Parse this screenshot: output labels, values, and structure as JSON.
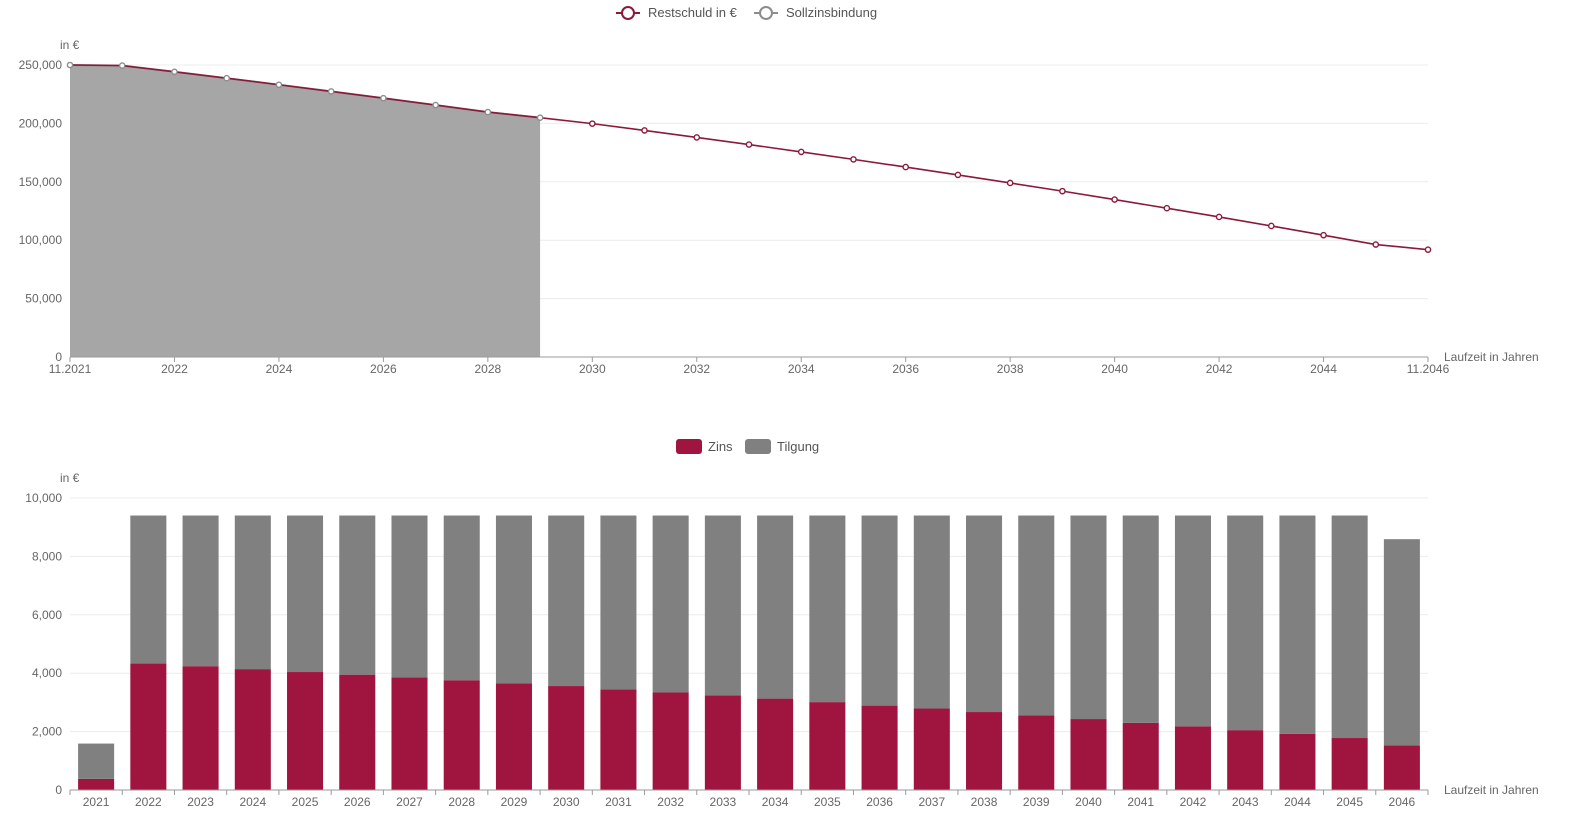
{
  "colors": {
    "restschuld": "#8b1a3a",
    "sollzinsbindung_line": "#8c8c8c",
    "sollzinsbindung_fill": "#a6a6a6",
    "zins": "#a01540",
    "tilgung": "#808080",
    "grid": "#ececec",
    "axis": "#9a9a9a"
  },
  "chart_data": [
    {
      "type": "line",
      "legend": [
        {
          "name": "Restschuld in €",
          "color": "#8b1a3a"
        },
        {
          "name": "Sollzinsbindung",
          "color": "#8c8c8c"
        }
      ],
      "ylabel": "in €",
      "xlabel": "Laufzeit in Jahren",
      "ylim": [
        0,
        250000
      ],
      "y_ticks": [
        "0",
        "50,000",
        "100,000",
        "150,000",
        "200,000",
        "250,000"
      ],
      "x_tick_labels": [
        "11.2021",
        "2022",
        "2024",
        "2026",
        "2028",
        "2030",
        "2032",
        "2034",
        "2036",
        "2038",
        "2040",
        "2042",
        "2044",
        "11.2046"
      ],
      "series": [
        {
          "name": "Restschuld in €",
          "x": [
            "11.2021",
            "2022",
            "2023",
            "2024",
            "2025",
            "2026",
            "2027",
            "2028",
            "2029",
            "2030",
            "2031",
            "2032",
            "2033",
            "2034",
            "2035",
            "2036",
            "2037",
            "2038",
            "2039",
            "2040",
            "2041",
            "2042",
            "2043",
            "2044",
            "2045",
            "2046",
            "11.2046"
          ],
          "values": [
            250000,
            249500,
            244200,
            238700,
            233100,
            227400,
            221600,
            215700,
            209700,
            204900,
            199800,
            194000,
            188000,
            181900,
            175600,
            169200,
            162600,
            155900,
            149000,
            142000,
            134800,
            127400,
            119900,
            112200,
            104300,
            96300,
            91900
          ]
        },
        {
          "name": "Sollzinsbindung",
          "x": [
            "11.2021",
            "2022",
            "2023",
            "2024",
            "2025",
            "2026",
            "2027",
            "2028",
            "2029",
            "2030"
          ],
          "values": [
            250000,
            249500,
            244200,
            238700,
            233100,
            227400,
            221600,
            215700,
            209700,
            204900
          ]
        }
      ]
    },
    {
      "type": "bar",
      "legend": [
        {
          "name": "Zins",
          "color": "#a01540"
        },
        {
          "name": "Tilgung",
          "color": "#808080"
        }
      ],
      "ylabel": "in €",
      "xlabel": "Laufzeit in Jahren",
      "ylim": [
        0,
        10000
      ],
      "y_ticks": [
        "0",
        "2,000",
        "4,000",
        "6,000",
        "8,000",
        "10,000"
      ],
      "categories": [
        "2021",
        "2022",
        "2023",
        "2024",
        "2025",
        "2026",
        "2027",
        "2028",
        "2029",
        "2030",
        "2031",
        "2032",
        "2033",
        "2034",
        "2035",
        "2036",
        "2037",
        "2038",
        "2039",
        "2040",
        "2041",
        "2042",
        "2043",
        "2044",
        "2045",
        "2046"
      ],
      "series": [
        {
          "name": "Zins",
          "values": [
            380,
            4330,
            4240,
            4140,
            4040,
            3950,
            3860,
            3760,
            3650,
            3560,
            3450,
            3340,
            3240,
            3130,
            3010,
            2890,
            2790,
            2670,
            2550,
            2430,
            2300,
            2180,
            2050,
            1920,
            1780,
            1530
          ]
        },
        {
          "name": "Tilgung",
          "values": [
            1210,
            5070,
            5160,
            5260,
            5360,
            5450,
            5540,
            5640,
            5750,
            5840,
            5950,
            6060,
            6160,
            6270,
            6390,
            6510,
            6610,
            6730,
            6850,
            6970,
            7100,
            7220,
            7350,
            7480,
            7620,
            7060
          ]
        }
      ]
    }
  ]
}
